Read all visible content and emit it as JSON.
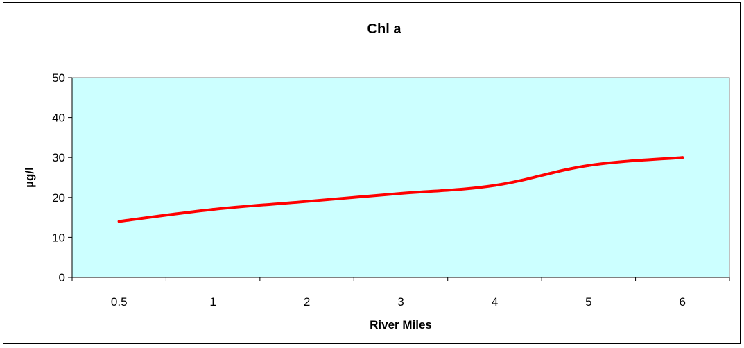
{
  "chart_data": {
    "type": "line",
    "title": "Chl a",
    "xlabel": "River Miles",
    "ylabel": "µg/l",
    "categories": [
      "0.5",
      "1",
      "2",
      "3",
      "4",
      "5",
      "6"
    ],
    "series": [
      {
        "values": [
          14,
          17,
          19,
          21,
          23,
          28,
          30
        ]
      }
    ],
    "yticks": [
      "0",
      "10",
      "20",
      "30",
      "40",
      "50"
    ],
    "ylim": [
      0,
      50
    ],
    "grid": false,
    "legend": "none",
    "colors": {
      "plot_background": "#ccffff",
      "line": "#ff0000",
      "axis": "#000000"
    }
  }
}
